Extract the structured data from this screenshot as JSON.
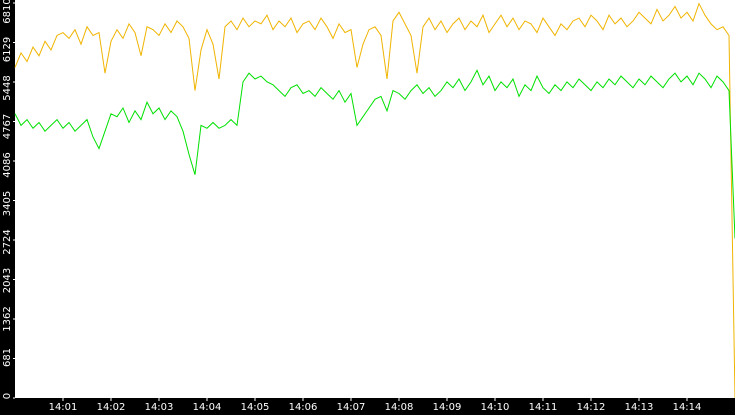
{
  "chart_data": {
    "type": "line",
    "x": [
      0,
      0.125,
      0.25,
      0.375,
      0.5,
      0.625,
      0.75,
      0.875,
      1,
      1.125,
      1.25,
      1.375,
      1.5,
      1.625,
      1.75,
      1.875,
      2,
      2.125,
      2.25,
      2.375,
      2.5,
      2.625,
      2.75,
      2.875,
      3,
      3.125,
      3.25,
      3.375,
      3.5,
      3.625,
      3.75,
      3.875,
      4,
      4.125,
      4.25,
      4.375,
      4.5,
      4.625,
      4.75,
      4.875,
      5,
      5.125,
      5.25,
      5.375,
      5.5,
      5.625,
      5.75,
      5.875,
      6,
      6.125,
      6.25,
      6.375,
      6.5,
      6.625,
      6.75,
      6.875,
      7,
      7.125,
      7.25,
      7.375,
      7.5,
      7.625,
      7.75,
      7.875,
      8,
      8.125,
      8.25,
      8.375,
      8.5,
      8.625,
      8.75,
      8.875,
      9,
      9.125,
      9.25,
      9.375,
      9.5,
      9.625,
      9.75,
      9.875,
      10,
      10.125,
      10.25,
      10.375,
      10.5,
      10.625,
      10.75,
      10.875,
      11,
      11.125,
      11.25,
      11.375,
      11.5,
      11.625,
      11.75,
      11.875,
      12,
      12.125,
      12.25,
      12.375,
      12.5,
      12.625,
      12.75,
      12.875,
      13,
      13.125,
      13.25,
      13.375,
      13.5,
      13.625,
      13.75,
      13.875,
      14,
      14.125,
      14.25,
      14.375,
      14.5,
      14.625,
      14.75,
      14.875,
      15
    ],
    "series": [
      {
        "color": "#f0b400",
        "values": [
          5700,
          5950,
          5800,
          6050,
          5900,
          6150,
          6000,
          6250,
          6300,
          6200,
          6350,
          6100,
          6400,
          6250,
          6300,
          5600,
          6150,
          6350,
          6200,
          6450,
          6300,
          5900,
          6400,
          6350,
          6250,
          6450,
          6300,
          6500,
          6400,
          6200,
          5300,
          6000,
          6350,
          6100,
          5500,
          6400,
          6500,
          6350,
          6550,
          6400,
          6500,
          6450,
          6600,
          6350,
          6500,
          6400,
          6550,
          6300,
          6450,
          6500,
          6350,
          6550,
          6400,
          6200,
          6450,
          6300,
          6350,
          5700,
          6100,
          6350,
          6400,
          6250,
          5500,
          6500,
          6650,
          6450,
          6250,
          5600,
          6400,
          6550,
          6350,
          6500,
          6300,
          6450,
          6550,
          6350,
          6500,
          6400,
          6600,
          6300,
          6450,
          6600,
          6400,
          6550,
          6350,
          6500,
          6450,
          6300,
          6550,
          6400,
          6250,
          6450,
          6350,
          6500,
          6550,
          6400,
          6600,
          6500,
          6350,
          6600,
          6450,
          6550,
          6400,
          6500,
          6650,
          6550,
          6450,
          6700,
          6500,
          6600,
          6750,
          6550,
          6650,
          6500,
          6800,
          6600,
          6450,
          6350,
          6400,
          6250,
          0
        ]
      },
      {
        "color": "#00e000",
        "values": [
          4900,
          4700,
          4800,
          4650,
          4750,
          4600,
          4700,
          4800,
          4650,
          4750,
          4600,
          4700,
          4800,
          4500,
          4300,
          4600,
          4900,
          4850,
          5000,
          4750,
          4950,
          4800,
          5100,
          4900,
          5000,
          4800,
          4950,
          4850,
          4600,
          4200,
          3850,
          4700,
          4650,
          4750,
          4650,
          4700,
          4800,
          4700,
          5450,
          5600,
          5500,
          5550,
          5450,
          5400,
          5300,
          5200,
          5350,
          5400,
          5250,
          5300,
          5200,
          5350,
          5250,
          5150,
          5300,
          5100,
          5250,
          4700,
          4850,
          5000,
          5150,
          5200,
          4950,
          5300,
          5250,
          5150,
          5300,
          5400,
          5250,
          5350,
          5200,
          5300,
          5450,
          5350,
          5500,
          5300,
          5450,
          5650,
          5400,
          5550,
          5300,
          5450,
          5350,
          5500,
          5200,
          5400,
          5300,
          5550,
          5350,
          5250,
          5400,
          5300,
          5450,
          5350,
          5500,
          5400,
          5300,
          5450,
          5350,
          5500,
          5400,
          5550,
          5450,
          5350,
          5500,
          5400,
          5550,
          5450,
          5350,
          5500,
          5600,
          5450,
          5550,
          5400,
          5600,
          5500,
          5350,
          5550,
          5450,
          5300,
          2750
        ]
      }
    ],
    "xlim": [
      0,
      15
    ],
    "xticks": [
      {
        "value": 1,
        "label": "14:01"
      },
      {
        "value": 2,
        "label": "14:02"
      },
      {
        "value": 3,
        "label": "14:03"
      },
      {
        "value": 4,
        "label": "14:04"
      },
      {
        "value": 5,
        "label": "14:05"
      },
      {
        "value": 6,
        "label": "14:06"
      },
      {
        "value": 7,
        "label": "14:07"
      },
      {
        "value": 8,
        "label": "14:08"
      },
      {
        "value": 9,
        "label": "14:09"
      },
      {
        "value": 10,
        "label": "14:10"
      },
      {
        "value": 11,
        "label": "14:11"
      },
      {
        "value": 12,
        "label": "14:12"
      },
      {
        "value": 13,
        "label": "14:13"
      },
      {
        "value": 14,
        "label": "14:14"
      }
    ],
    "ylim": [
      0,
      6810
    ],
    "yticks": [
      0,
      681,
      1362,
      2043,
      2724,
      3405,
      4086,
      4767,
      5448,
      6129,
      6810
    ]
  }
}
